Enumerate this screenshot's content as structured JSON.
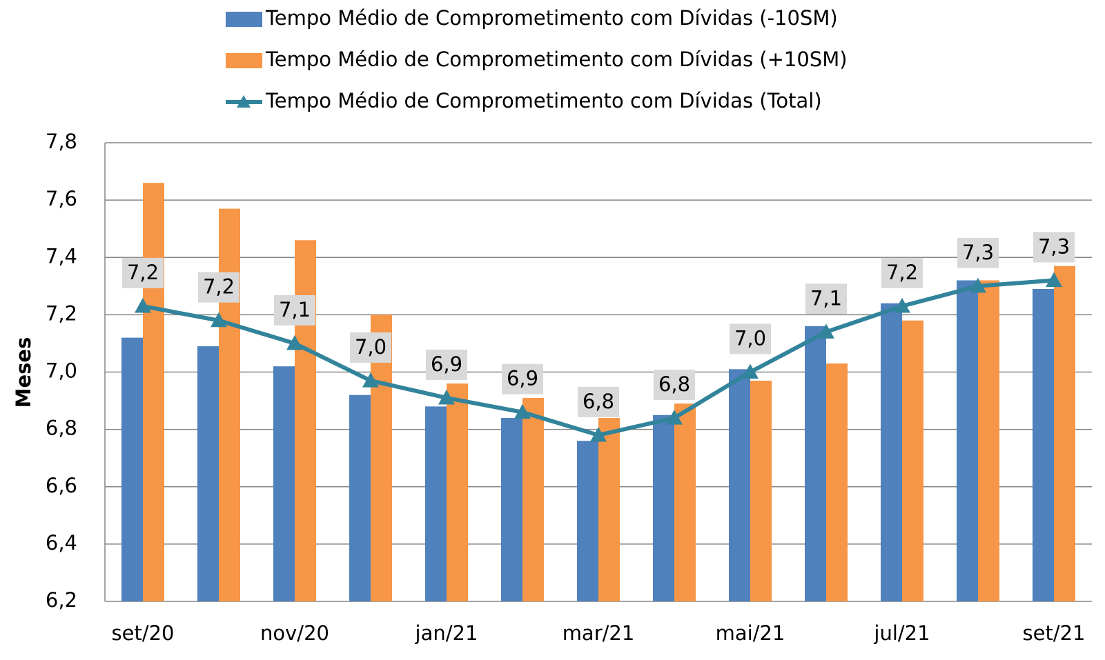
{
  "chart_data": {
    "type": "bar-line",
    "y_label": "Meses",
    "categories": [
      "set/20",
      null,
      "nov/20",
      null,
      "jan/21",
      null,
      "mar/21",
      null,
      "mai/21",
      null,
      "jul/21",
      null,
      "set/21"
    ],
    "series": [
      {
        "name": "Tempo Médio de Comprometimento com Dívidas (-10SM)",
        "type": "bar",
        "color": "#4f81bd",
        "values": [
          7.12,
          7.09,
          7.02,
          6.92,
          6.88,
          6.84,
          6.76,
          6.85,
          7.01,
          7.16,
          7.24,
          7.32,
          7.29
        ]
      },
      {
        "name": "Tempo Médio de Comprometimento com Dívidas  (+10SM)",
        "type": "bar",
        "color": "#f79646",
        "values": [
          7.66,
          7.57,
          7.46,
          7.2,
          6.96,
          6.91,
          6.84,
          6.89,
          6.97,
          7.03,
          7.18,
          7.32,
          7.37
        ]
      },
      {
        "name": "Tempo Médio de Comprometimento com Dívidas (Total)",
        "type": "line",
        "color": "#31849b",
        "values": [
          7.23,
          7.18,
          7.1,
          6.97,
          6.91,
          6.86,
          6.78,
          6.84,
          7.0,
          7.14,
          7.23,
          7.3,
          7.32
        ],
        "value_labels": [
          "7,2",
          "7,2",
          "7,1",
          "7,0",
          "6,9",
          "6,9",
          "6,8",
          "6,8",
          "7,0",
          "7,1",
          "7,2",
          "7,3",
          "7,3"
        ]
      }
    ],
    "ylim": [
      6.2,
      7.8
    ],
    "yticks": [
      {
        "value": 6.2,
        "label": "6,2"
      },
      {
        "value": 6.4,
        "label": "6,4"
      },
      {
        "value": 6.6,
        "label": "6,6"
      },
      {
        "value": 6.8,
        "label": "6,8"
      },
      {
        "value": 7.0,
        "label": "7,0"
      },
      {
        "value": 7.2,
        "label": "7,2"
      },
      {
        "value": 7.4,
        "label": "7,4"
      },
      {
        "value": 7.6,
        "label": "7,6"
      },
      {
        "value": 7.8,
        "label": "7,8"
      }
    ],
    "grid": true
  }
}
